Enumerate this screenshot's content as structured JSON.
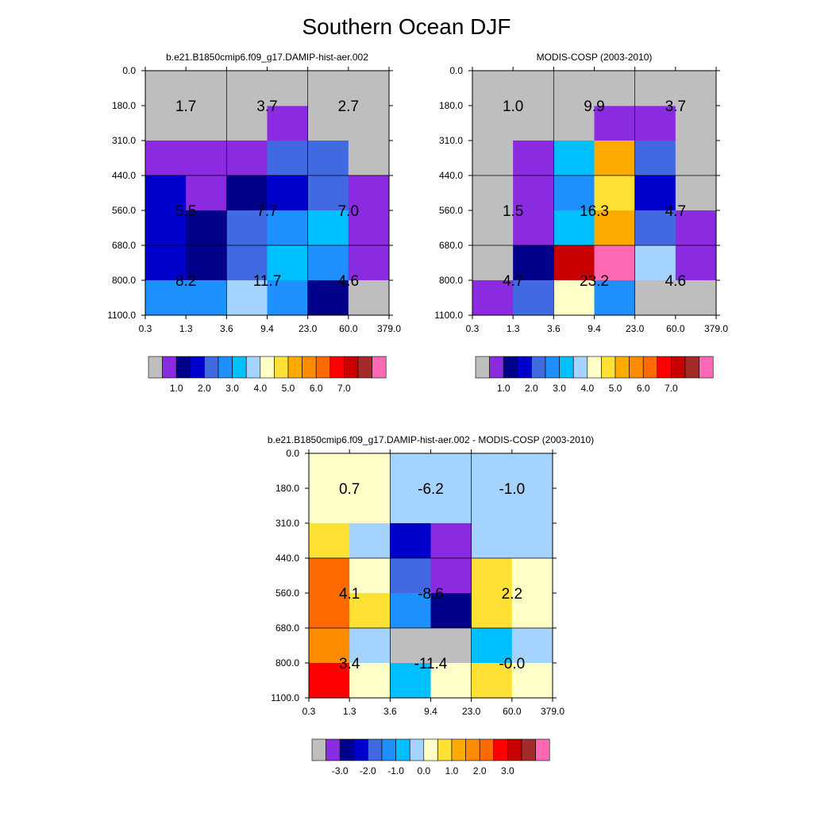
{
  "figure": {
    "title": "Southern Ocean DJF"
  },
  "chart_data": [
    {
      "type": "heatmap",
      "title": "b.e21.B1850cmip6.f09_g17.DAMIP-hist-aer.002",
      "x_ticks": [
        "0.3",
        "1.3",
        "3.6",
        "9.4",
        "23.0",
        "60.0",
        "379.0"
      ],
      "y_ticks": [
        "0.0",
        "180.0",
        "310.0",
        "440.0",
        "560.0",
        "680.0",
        "800.0",
        "1100.0"
      ],
      "cells": [
        [
          "gray",
          "gray",
          "gray",
          "violet",
          "gray",
          "gray"
        ],
        [
          "violet",
          "violet",
          "violet",
          "royal",
          "royal",
          "gray"
        ],
        [
          "mblue",
          "violet",
          "navy",
          "mblue",
          "royal",
          "violet"
        ],
        [
          "mblue",
          "navy",
          "royal",
          "dodger",
          "sky",
          "violet"
        ],
        [
          "mblue",
          "navy",
          "royal",
          "sky",
          "dodger",
          "violet"
        ],
        [
          "dodger",
          "dodger",
          "pale",
          "dodger",
          "navy",
          "gray"
        ]
      ],
      "cell_labels": [
        [
          "1.7",
          "3.7",
          "2.7"
        ],
        [
          "5.5",
          "7.7",
          "7.0"
        ],
        [
          "8.2",
          "11.7",
          "4.6"
        ]
      ],
      "colorbar": {
        "colors": [
          "gray",
          "violet",
          "navy",
          "mblue",
          "royal",
          "dodger",
          "sky",
          "pale",
          "cream",
          "yellow",
          "gold",
          "orange",
          "dorange",
          "red",
          "dred",
          "brown",
          "pink"
        ],
        "labels": [
          "1.0",
          "2.0",
          "3.0",
          "4.0",
          "5.0",
          "6.0",
          "7.0"
        ]
      }
    },
    {
      "type": "heatmap",
      "title": "MODIS-COSP (2003-2010)",
      "x_ticks": [
        "0.3",
        "1.3",
        "3.6",
        "9.4",
        "23.0",
        "60.0",
        "379.0"
      ],
      "y_ticks": [
        "0.0",
        "180.0",
        "310.0",
        "440.0",
        "560.0",
        "680.0",
        "800.0",
        "1100.0"
      ],
      "cells": [
        [
          "gray",
          "gray",
          "gray",
          "violet",
          "violet",
          "gray"
        ],
        [
          "gray",
          "violet",
          "sky",
          "gold",
          "royal",
          "gray"
        ],
        [
          "gray",
          "violet",
          "dodger",
          "yellow",
          "mblue",
          "gray"
        ],
        [
          "gray",
          "violet",
          "sky",
          "gold",
          "royal",
          "violet"
        ],
        [
          "gray",
          "navy",
          "dred",
          "pink",
          "pale",
          "violet"
        ],
        [
          "violet",
          "royal",
          "cream",
          "dodger",
          "gray",
          "gray"
        ]
      ],
      "cell_labels": [
        [
          "1.0",
          "9.9",
          "3.7"
        ],
        [
          "1.5",
          "16.3",
          "4.7"
        ],
        [
          "4.7",
          "23.2",
          "4.6"
        ]
      ],
      "colorbar": {
        "colors": [
          "gray",
          "violet",
          "navy",
          "mblue",
          "royal",
          "dodger",
          "sky",
          "pale",
          "cream",
          "yellow",
          "gold",
          "orange",
          "dorange",
          "red",
          "dred",
          "brown",
          "pink"
        ],
        "labels": [
          "1.0",
          "2.0",
          "3.0",
          "4.0",
          "5.0",
          "6.0",
          "7.0"
        ]
      }
    },
    {
      "type": "heatmap",
      "title": "b.e21.B1850cmip6.f09_g17.DAMIP-hist-aer.002 - MODIS-COSP (2003-2010)",
      "x_ticks": [
        "0.3",
        "1.3",
        "3.6",
        "9.4",
        "23.0",
        "60.0",
        "379.0"
      ],
      "y_ticks": [
        "0.0",
        "180.0",
        "310.0",
        "440.0",
        "560.0",
        "680.0",
        "800.0",
        "1100.0"
      ],
      "cells": [
        [
          "cream",
          "cream",
          "pale",
          "pale",
          "pale",
          "pale"
        ],
        [
          "yellow",
          "pale",
          "mblue",
          "violet",
          "pale",
          "pale"
        ],
        [
          "dorange",
          "cream",
          "royal",
          "violet",
          "yellow",
          "cream"
        ],
        [
          "dorange",
          "yellow",
          "dodger",
          "navy",
          "yellow",
          "cream"
        ],
        [
          "orange",
          "pale",
          "gray",
          "gray",
          "sky",
          "pale"
        ],
        [
          "red",
          "cream",
          "sky",
          "cream",
          "yellow",
          "cream"
        ]
      ],
      "cell_labels": [
        [
          "0.7",
          "-6.2",
          "-1.0"
        ],
        [
          "4.1",
          "-8.6",
          "2.2"
        ],
        [
          "3.4",
          "-11.4",
          "-0.0"
        ]
      ],
      "colorbar": {
        "colors": [
          "gray",
          "violet",
          "navy",
          "mblue",
          "royal",
          "dodger",
          "sky",
          "pale",
          "cream",
          "yellow",
          "gold",
          "orange",
          "dorange",
          "red",
          "dred",
          "brown",
          "pink"
        ],
        "labels": [
          "-3.0",
          "-2.0",
          "-1.0",
          "0.0",
          "1.0",
          "2.0",
          "3.0"
        ]
      }
    }
  ],
  "colors": {
    "gray": "#bebebe",
    "violet": "#8a2be2",
    "navy": "#00008b",
    "mblue": "#0000cd",
    "royal": "#4169e1",
    "dodger": "#1e90ff",
    "sky": "#00bfff",
    "pale": "#a4d3ff",
    "cream": "#ffffc8",
    "yellow": "#ffe135",
    "gold": "#ffaa00",
    "orange": "#ff8c00",
    "dorange": "#ff6a00",
    "red": "#ff0000",
    "dred": "#c80000",
    "brown": "#a52a2a",
    "pink": "#ff69b4"
  }
}
